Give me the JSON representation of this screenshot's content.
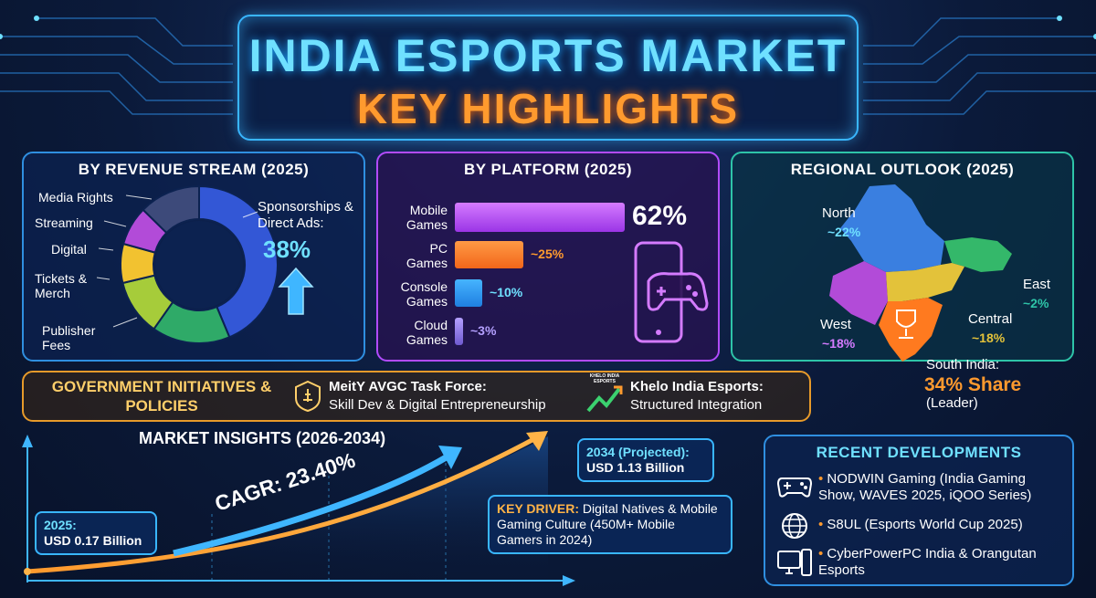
{
  "header": {
    "title_line1": "INDIA ESPORTS MARKET",
    "title_line2": "KEY HIGHLIGHTS"
  },
  "colors": {
    "cyan": "#6fe0ff",
    "orange": "#ff9a2e",
    "purple": "#b24bff",
    "teal": "#2ec4a8"
  },
  "revenue": {
    "title": "BY REVENUE STREAM (2025)",
    "highlight_label": "Sponsorships & Direct Ads:",
    "highlight_value": "38%",
    "labels": {
      "media": "Media Rights",
      "streaming": "Streaming",
      "digital": "Digital",
      "tickets": "Tickets & Merch",
      "publisher": "Publisher Fees"
    }
  },
  "platform": {
    "title": "BY PLATFORM (2025)",
    "bars": [
      {
        "name": "Mobile Games",
        "label": "62%"
      },
      {
        "name": "PC Games",
        "label": "~25%"
      },
      {
        "name": "Console Games",
        "label": "~10%"
      },
      {
        "name": "Cloud Games",
        "label": "~3%"
      }
    ]
  },
  "regional": {
    "title": "REGIONAL OUTLOOK (2025)",
    "north": {
      "name": "North",
      "value": "~22%"
    },
    "east": {
      "name": "East",
      "value": "~2%"
    },
    "west": {
      "name": "West",
      "value": "~18%"
    },
    "central": {
      "name": "Central",
      "value": "~18%"
    },
    "south": {
      "name": "South India:",
      "value": "34% Share",
      "note": "(Leader)"
    }
  },
  "government": {
    "title": "GOVERNMENT INITIATIVES & POLICIES",
    "meity_title": "MeitY AVGC Task Force:",
    "meity_desc": "Skill Dev & Digital Entrepreneurship",
    "khelo_logo": "KHELO INDIA ESPORTS",
    "khelo_title": "Khelo India Esports:",
    "khelo_desc": "Structured Integration"
  },
  "insights": {
    "title": "MARKET INSIGHTS (2026-2034)",
    "start_year": "2025:",
    "start_value": "USD 0.17 Billion",
    "end_year": "2034 (Projected):",
    "end_value": "USD 1.13 Billion",
    "cagr": "CAGR: 23.40%",
    "driver_label": "KEY DRIVER:",
    "driver_text": "Digital Natives & Mobile Gaming Culture (450M+ Mobile Gamers in 2024)"
  },
  "recent": {
    "title": "RECENT DEVELOPMENTS",
    "items": [
      "NODWIN Gaming (India Gaming Show, WAVES 2025, iQOO Series)",
      "S8UL (Esports World Cup 2025)",
      "CyberPowerPC India & Orangutan Esports"
    ]
  },
  "chart_data": [
    {
      "type": "pie",
      "title": "BY REVENUE STREAM (2025)",
      "categories": [
        "Sponsorships & Direct Ads",
        "Streaming",
        "Digital",
        "Tickets & Merch",
        "Publisher Fees",
        "Media Rights"
      ],
      "values": [
        38,
        7,
        7,
        10,
        14,
        11
      ],
      "labeled_values": {
        "Sponsorships & Direct Ads": 38
      }
    },
    {
      "type": "bar",
      "title": "BY PLATFORM (2025)",
      "orientation": "horizontal",
      "categories": [
        "Mobile Games",
        "PC Games",
        "Console Games",
        "Cloud Games"
      ],
      "values": [
        62,
        25,
        10,
        3
      ],
      "xlim": [
        0,
        62
      ]
    },
    {
      "type": "line",
      "title": "MARKET INSIGHTS (2026-2034)",
      "x": [
        2025,
        2034
      ],
      "y": [
        0.17,
        1.13
      ],
      "ylabel": "USD Billion"
    }
  ]
}
